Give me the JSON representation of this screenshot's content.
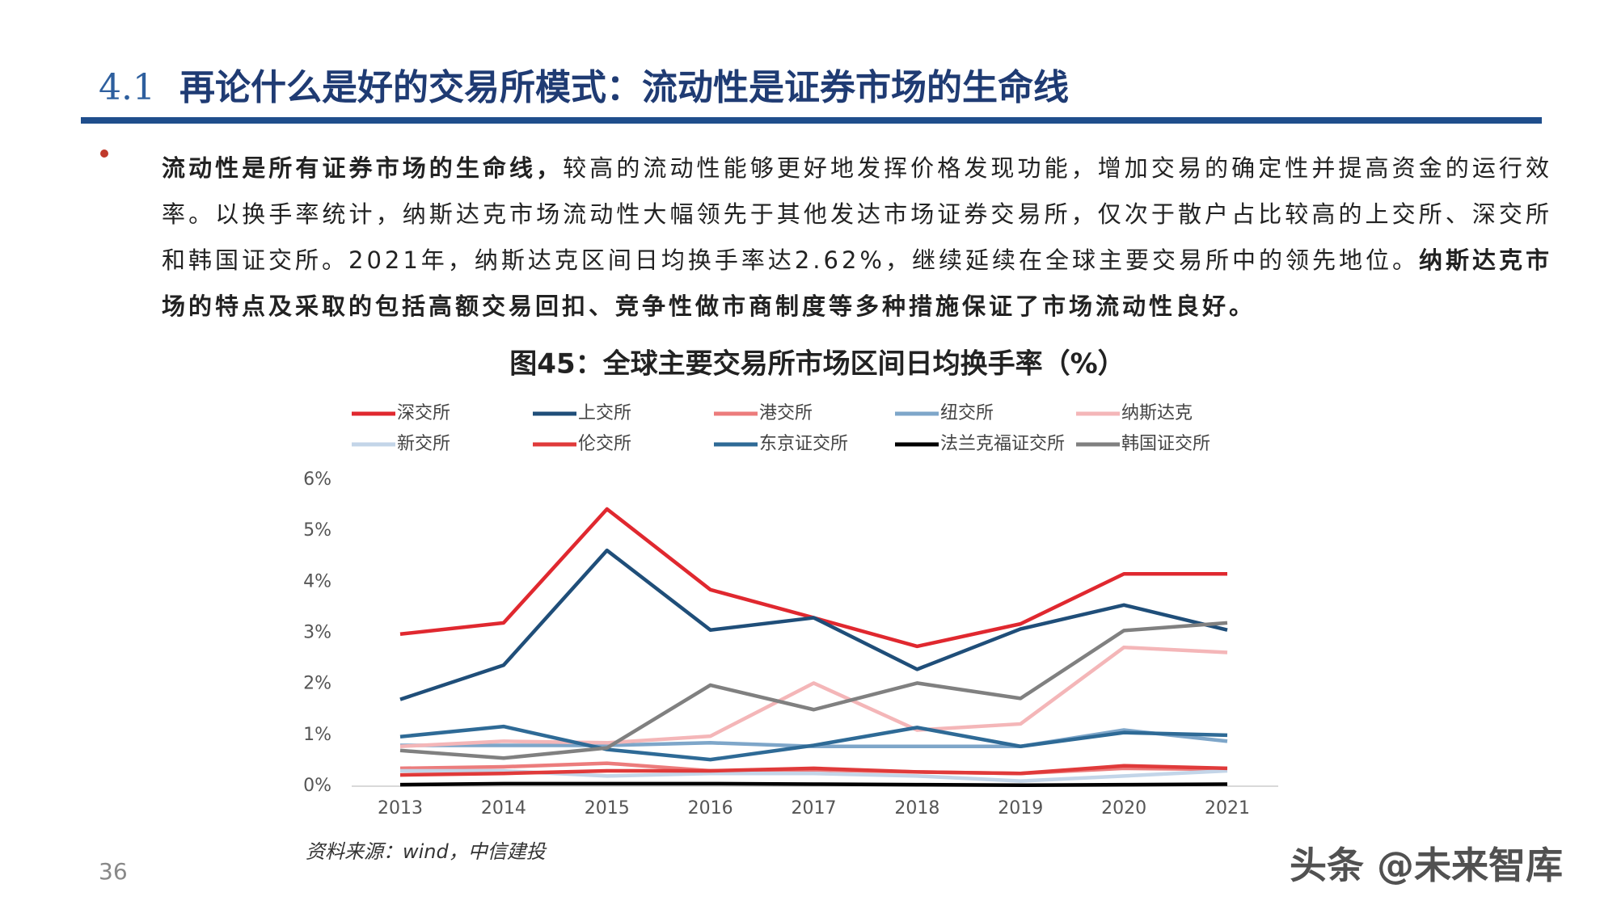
{
  "header": {
    "number": "4.1",
    "title": "再论什么是好的交易所模式：流动性是证券市场的生命线"
  },
  "bullet": [
    {
      "text": "流动性是所有证券市场的生命线，",
      "bold": true
    },
    {
      "text": "较高的流动性能够更好地发挥价格发现功能，增加交易的确定性并提高资金的运行效率。以换手率统计，纳斯达克市场流动性大幅领先于其他发达市场证券交易所，仅次于散户占比较高的上交所、深交所和韩国证交所。2021年，纳斯达克区间日均换手率达2.62%，继续延续在全球主要交易所中的领先地位。",
      "bold": false
    },
    {
      "text": "纳斯达克市场的特点及采取的包括高额交易回扣、竞争性做市商制度等多种措施保证了市场流动性良好。",
      "bold": true
    }
  ],
  "chart_data": {
    "type": "line",
    "title": "图45：全球主要交易所市场区间日均换手率（%）",
    "categories": [
      "2013",
      "2014",
      "2015",
      "2016",
      "2017",
      "2018",
      "2019",
      "2020",
      "2021"
    ],
    "series": [
      {
        "name": "深交所",
        "color": "#e0282f",
        "values": [
          2.98,
          3.2,
          5.43,
          3.85,
          3.3,
          2.74,
          3.18,
          4.16,
          4.16
        ]
      },
      {
        "name": "上交所",
        "color": "#1f4e79",
        "values": [
          1.7,
          2.37,
          4.62,
          3.06,
          3.3,
          2.29,
          3.08,
          3.55,
          3.06
        ]
      },
      {
        "name": "港交所",
        "color": "#ec7c7c",
        "values": [
          0.35,
          0.38,
          0.45,
          0.3,
          0.32,
          0.28,
          0.25,
          0.35,
          0.33
        ]
      },
      {
        "name": "纽交所",
        "color": "#7ea6c9",
        "values": [
          0.8,
          0.8,
          0.8,
          0.85,
          0.78,
          0.78,
          0.78,
          1.1,
          0.88
        ]
      },
      {
        "name": "纳斯达克",
        "color": "#f4b6b8",
        "values": [
          0.78,
          0.88,
          0.85,
          0.98,
          2.02,
          1.1,
          1.22,
          2.72,
          2.62
        ]
      },
      {
        "name": "新交所",
        "color": "#c3d5e8",
        "values": [
          0.3,
          0.3,
          0.2,
          0.25,
          0.25,
          0.2,
          0.1,
          0.2,
          0.3
        ]
      },
      {
        "name": "伦交所",
        "color": "#e03a3a",
        "values": [
          0.22,
          0.25,
          0.3,
          0.3,
          0.35,
          0.28,
          0.25,
          0.4,
          0.35
        ]
      },
      {
        "name": "东京证交所",
        "color": "#2e6a96",
        "values": [
          0.97,
          1.17,
          0.72,
          0.52,
          0.8,
          1.15,
          0.78,
          1.05,
          1.0
        ]
      },
      {
        "name": "法兰克福证交所",
        "color": "#000000",
        "values": [
          0.03,
          0.05,
          0.05,
          0.05,
          0.04,
          0.03,
          0.02,
          0.03,
          0.04
        ]
      },
      {
        "name": "韩国证交所",
        "color": "#808080",
        "values": [
          0.7,
          0.55,
          0.75,
          1.98,
          1.5,
          2.02,
          1.72,
          3.05,
          3.2
        ]
      }
    ],
    "ylim": [
      0,
      6
    ],
    "yticks": [
      {
        "value": 0,
        "label": "0%"
      },
      {
        "value": 1,
        "label": "1%"
      },
      {
        "value": 2,
        "label": "2%"
      },
      {
        "value": 3,
        "label": "3%"
      },
      {
        "value": 4,
        "label": "4%"
      },
      {
        "value": 5,
        "label": "5%"
      },
      {
        "value": 6,
        "label": "6%"
      }
    ],
    "grid": false
  },
  "source": "资料来源：wind，中信建投",
  "page_number": "36",
  "watermark": "头条 @未来智库"
}
